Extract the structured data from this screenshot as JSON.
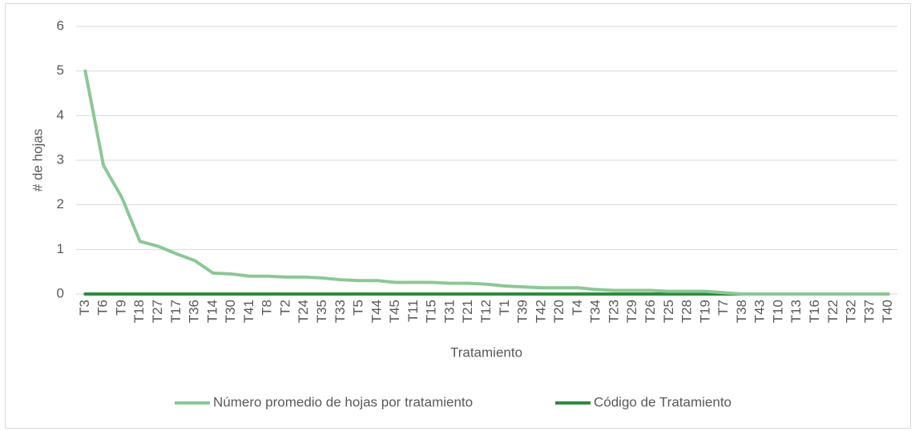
{
  "chart_data": {
    "type": "line",
    "x_label": "Tratamiento",
    "y_label": "# de hojas",
    "categories": [
      "T3",
      "T6",
      "T9",
      "T18",
      "T27",
      "T17",
      "T36",
      "T14",
      "T30",
      "T41",
      "T8",
      "T2",
      "T24",
      "T35",
      "T33",
      "T5",
      "T44",
      "T45",
      "T11",
      "T15",
      "T31",
      "T21",
      "T12",
      "T1",
      "T39",
      "T42",
      "T20",
      "T4",
      "T34",
      "T23",
      "T29",
      "T26",
      "T25",
      "T28",
      "T19",
      "T7",
      "T38",
      "T43",
      "T10",
      "T13",
      "T16",
      "T22",
      "T32",
      "T37",
      "T40"
    ],
    "series": [
      {
        "name": "Número promedio de hojas por tratamiento",
        "color": "#8cc796",
        "values": [
          5,
          2.88,
          2.17,
          1.18,
          1.07,
          0.9,
          0.75,
          0.47,
          0.45,
          0.4,
          0.4,
          0.38,
          0.38,
          0.36,
          0.32,
          0.3,
          0.3,
          0.26,
          0.26,
          0.26,
          0.24,
          0.24,
          0.22,
          0.18,
          0.16,
          0.14,
          0.14,
          0.14,
          0.1,
          0.08,
          0.08,
          0.08,
          0.06,
          0.06,
          0.06,
          0.03,
          0,
          0,
          0,
          0,
          0,
          0,
          0,
          0,
          0
        ]
      },
      {
        "name": "Código de Tratamiento",
        "color": "#2e8b3e",
        "values": [
          0,
          0,
          0,
          0,
          0,
          0,
          0,
          0,
          0,
          0,
          0,
          0,
          0,
          0,
          0,
          0,
          0,
          0,
          0,
          0,
          0,
          0,
          0,
          0,
          0,
          0,
          0,
          0,
          0,
          0,
          0,
          0,
          0,
          0,
          0,
          0,
          0,
          0,
          0,
          0,
          0,
          0,
          0,
          0,
          0
        ]
      }
    ],
    "ylim": [
      0,
      6
    ],
    "yticks": [
      0,
      1,
      2,
      3,
      4,
      5,
      6
    ],
    "grid": true,
    "legend": "bottom"
  }
}
